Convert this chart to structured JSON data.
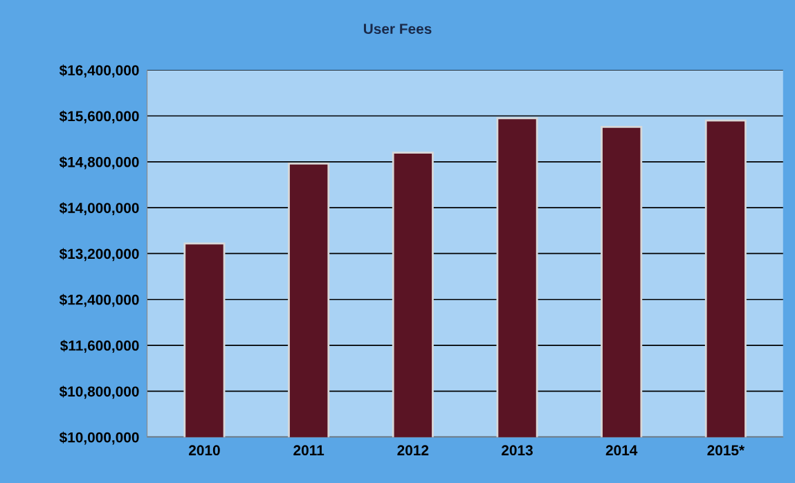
{
  "chart_data": {
    "type": "bar",
    "title": "User Fees",
    "categories": [
      "2010",
      "2011",
      "2012",
      "2013",
      "2014",
      "2015*"
    ],
    "values": [
      13375000,
      14770000,
      14960000,
      15560000,
      15410000,
      15520000
    ],
    "color": "#5a1424",
    "ylim": [
      10000000,
      16400000
    ],
    "yticks": [
      {
        "value": 10000000,
        "label": "$10,000,000"
      },
      {
        "value": 10800000,
        "label": "$10,800,000"
      },
      {
        "value": 11600000,
        "label": "$11,600,000"
      },
      {
        "value": 12400000,
        "label": "$12,400,000"
      },
      {
        "value": 13200000,
        "label": "$13,200,000"
      },
      {
        "value": 14000000,
        "label": "$14,000,000"
      },
      {
        "value": 14800000,
        "label": "$14,800,000"
      },
      {
        "value": 15600000,
        "label": "$15,600,000"
      },
      {
        "value": 16400000,
        "label": "$16,400,000"
      }
    ],
    "grid": "y",
    "legend": false
  }
}
